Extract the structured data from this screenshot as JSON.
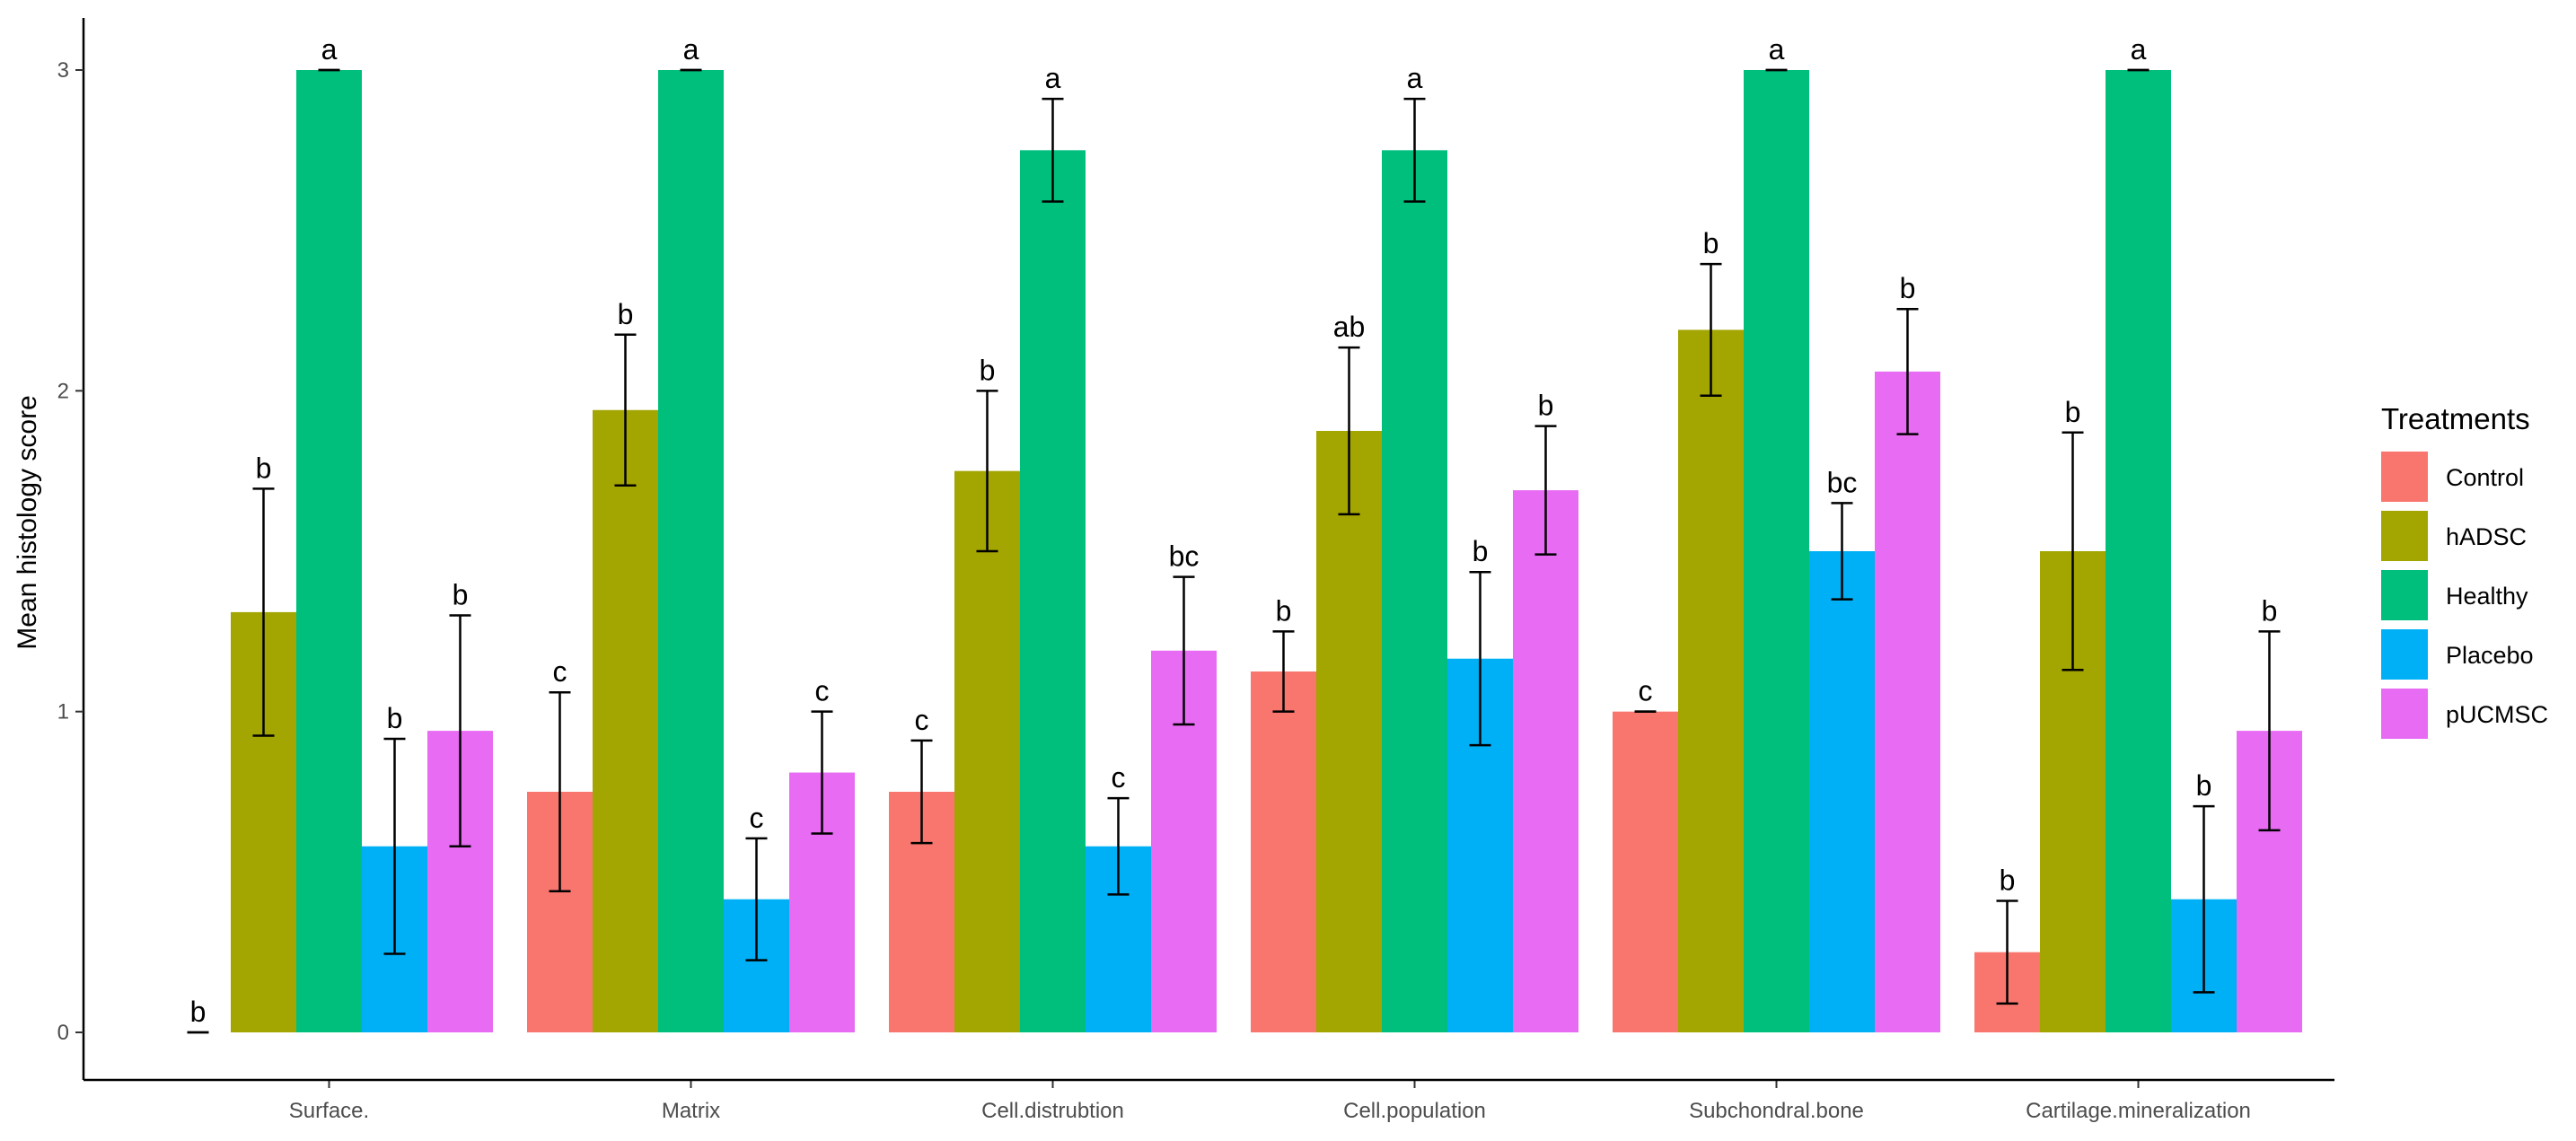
{
  "chart_data": {
    "type": "bar",
    "ylabel": "Mean histology score",
    "xlabel": "",
    "ylim": [
      0,
      3
    ],
    "y_ticks": [
      0,
      1,
      2,
      3
    ],
    "categories": [
      "Surface.",
      "Matrix",
      "Cell.distrubtion",
      "Cell.population",
      "Subchondral.bone",
      "Cartilage.mineralization"
    ],
    "legend": {
      "title": "Treatments",
      "position": "right"
    },
    "grid": false,
    "series": [
      {
        "name": "Control",
        "color": "#F8766D",
        "values": [
          0,
          0.75,
          0.75,
          1.125,
          1.0,
          0.25
        ],
        "errors": [
          0,
          0.31,
          0.16,
          0.125,
          0,
          0.16
        ],
        "letters": [
          "b",
          "c",
          "c",
          "b",
          "c",
          "b"
        ]
      },
      {
        "name": "hADSC",
        "color": "#A3A500",
        "values": [
          1.31,
          1.94,
          1.75,
          1.875,
          2.19,
          1.5
        ],
        "errors": [
          0.385,
          0.235,
          0.25,
          0.26,
          0.205,
          0.37
        ],
        "letters": [
          "b",
          "b",
          "b",
          "ab",
          "b",
          "b"
        ]
      },
      {
        "name": "Healthy",
        "color": "#00BF7D",
        "values": [
          3.0,
          3.0,
          2.75,
          2.75,
          3.0,
          3.0
        ],
        "errors": [
          0,
          0,
          0.16,
          0.16,
          0,
          0
        ],
        "letters": [
          "a",
          "a",
          "a",
          "a",
          "a",
          "a"
        ]
      },
      {
        "name": "Placebo",
        "color": "#00B0F6",
        "values": [
          0.58,
          0.415,
          0.58,
          1.165,
          1.5,
          0.415
        ],
        "errors": [
          0.335,
          0.19,
          0.15,
          0.27,
          0.15,
          0.29
        ],
        "letters": [
          "b",
          "c",
          "c",
          "b",
          "bc",
          "b"
        ]
      },
      {
        "name": "pUCMSC",
        "color": "#E76BF3",
        "values": [
          0.94,
          0.81,
          1.19,
          1.69,
          2.06,
          0.94
        ],
        "errors": [
          0.36,
          0.19,
          0.23,
          0.2,
          0.195,
          0.31
        ],
        "letters": [
          "b",
          "c",
          "bc",
          "b",
          "b",
          "b"
        ]
      }
    ]
  }
}
